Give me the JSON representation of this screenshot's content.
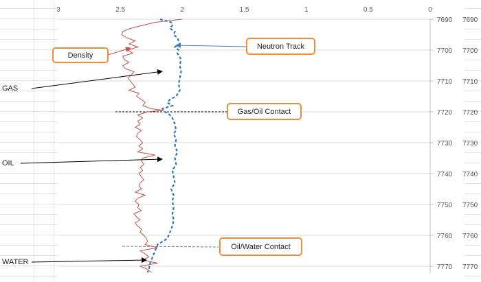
{
  "chart_data": {
    "type": "line",
    "x_axis": {
      "ticks": [
        "3",
        "2.5",
        "2",
        "1.5",
        "1",
        "0.5",
        "0"
      ],
      "range": [
        3,
        0
      ],
      "position": "top",
      "reversed": true
    },
    "y_axis": {
      "ticks": [
        "7690",
        "7700",
        "7710",
        "7720",
        "7730",
        "7740",
        "7750",
        "7760",
        "7770"
      ],
      "range": [
        7690,
        7772
      ],
      "reversed": true,
      "secondary_labels": true
    },
    "gridlines": "horizontal",
    "series": [
      {
        "name": "Density",
        "color": "#c0504d",
        "style": "solid",
        "points": [
          [
            2.0,
            7690
          ],
          [
            2.22,
            7691
          ],
          [
            2.32,
            7692
          ],
          [
            2.42,
            7693
          ],
          [
            2.48,
            7694
          ],
          [
            2.49,
            7695
          ],
          [
            2.45,
            7696
          ],
          [
            2.38,
            7697
          ],
          [
            2.43,
            7698
          ],
          [
            2.36,
            7699
          ],
          [
            2.44,
            7700
          ],
          [
            2.4,
            7701
          ],
          [
            2.48,
            7702
          ],
          [
            2.47,
            7703
          ],
          [
            2.43,
            7704
          ],
          [
            2.48,
            7705
          ],
          [
            2.46,
            7706
          ],
          [
            2.39,
            7707
          ],
          [
            2.41,
            7708
          ],
          [
            2.44,
            7709
          ],
          [
            2.42,
            7710
          ],
          [
            2.4,
            7711
          ],
          [
            2.38,
            7712
          ],
          [
            2.43,
            7713
          ],
          [
            2.35,
            7714
          ],
          [
            2.37,
            7715
          ],
          [
            2.33,
            7716
          ],
          [
            2.3,
            7717
          ],
          [
            2.32,
            7718
          ],
          [
            2.25,
            7719
          ],
          [
            2.15,
            7719.5
          ],
          [
            2.28,
            7720
          ],
          [
            2.36,
            7721
          ],
          [
            2.32,
            7722
          ],
          [
            2.36,
            7723
          ],
          [
            2.34,
            7724
          ],
          [
            2.38,
            7725
          ],
          [
            2.33,
            7726
          ],
          [
            2.36,
            7727
          ],
          [
            2.37,
            7728
          ],
          [
            2.34,
            7729
          ],
          [
            2.32,
            7730
          ],
          [
            2.35,
            7731
          ],
          [
            2.32,
            7732
          ],
          [
            2.36,
            7733
          ],
          [
            2.22,
            7734
          ],
          [
            2.32,
            7735
          ],
          [
            2.33,
            7736
          ],
          [
            2.31,
            7737
          ],
          [
            2.34,
            7738
          ],
          [
            2.32,
            7739
          ],
          [
            2.35,
            7740
          ],
          [
            2.33,
            7741
          ],
          [
            2.31,
            7742
          ],
          [
            2.34,
            7743
          ],
          [
            2.35,
            7744
          ],
          [
            2.33,
            7745
          ],
          [
            2.38,
            7746
          ],
          [
            2.3,
            7747
          ],
          [
            2.36,
            7748
          ],
          [
            2.38,
            7749
          ],
          [
            2.35,
            7750
          ],
          [
            2.36,
            7751
          ],
          [
            2.33,
            7752
          ],
          [
            2.39,
            7753
          ],
          [
            2.37,
            7754
          ],
          [
            2.34,
            7755
          ],
          [
            2.38,
            7756
          ],
          [
            2.36,
            7757
          ],
          [
            2.33,
            7758
          ],
          [
            2.34,
            7759
          ],
          [
            2.31,
            7760
          ],
          [
            2.29,
            7761
          ],
          [
            2.28,
            7762
          ],
          [
            2.3,
            7763
          ],
          [
            2.2,
            7764
          ],
          [
            2.34,
            7765
          ],
          [
            2.3,
            7766
          ],
          [
            2.27,
            7767
          ],
          [
            2.32,
            7768
          ],
          [
            2.2,
            7769
          ],
          [
            2.34,
            7770
          ],
          [
            2.28,
            7771
          ],
          [
            2.25,
            7772
          ]
        ]
      },
      {
        "name": "Neutron Track",
        "color": "#2e75b6",
        "style": "dashed",
        "points": [
          [
            2.18,
            7690
          ],
          [
            2.09,
            7691
          ],
          [
            2.08,
            7692
          ],
          [
            2.1,
            7693
          ],
          [
            2.06,
            7694
          ],
          [
            2.07,
            7695
          ],
          [
            2.04,
            7696
          ],
          [
            2.02,
            7698
          ],
          [
            2.06,
            7699
          ],
          [
            2.03,
            7700
          ],
          [
            2.04,
            7701
          ],
          [
            2.01,
            7703
          ],
          [
            2.02,
            7705
          ],
          [
            2.01,
            7707
          ],
          [
            2.02,
            7709
          ],
          [
            2.03,
            7711
          ],
          [
            2.02,
            7713
          ],
          [
            2.05,
            7715
          ],
          [
            2.1,
            7716
          ],
          [
            2.12,
            7717
          ],
          [
            2.08,
            7718
          ],
          [
            2.16,
            7719
          ],
          [
            2.14,
            7720
          ],
          [
            2.1,
            7721
          ],
          [
            2.08,
            7722
          ],
          [
            2.06,
            7724
          ],
          [
            2.05,
            7726
          ],
          [
            2.07,
            7727
          ],
          [
            2.05,
            7729
          ],
          [
            2.06,
            7731
          ],
          [
            2.04,
            7733
          ],
          [
            2.06,
            7735
          ],
          [
            2.05,
            7737
          ],
          [
            2.08,
            7739
          ],
          [
            2.07,
            7741
          ],
          [
            2.06,
            7743
          ],
          [
            2.09,
            7745
          ],
          [
            2.07,
            7747
          ],
          [
            2.08,
            7749
          ],
          [
            2.07,
            7751
          ],
          [
            2.08,
            7753
          ],
          [
            2.07,
            7755
          ],
          [
            2.08,
            7757
          ],
          [
            2.1,
            7759
          ],
          [
            2.12,
            7761
          ],
          [
            2.2,
            7763
          ],
          [
            2.22,
            7765
          ],
          [
            2.24,
            7767
          ],
          [
            2.26,
            7769
          ],
          [
            2.27,
            7771
          ],
          [
            2.28,
            7772
          ]
        ]
      }
    ]
  },
  "callouts": {
    "density": "Density",
    "neutron": "Neutron Track",
    "gas_oil": "Gas/Oil Contact",
    "oil_water": "Oil/Water Contact"
  },
  "zones": {
    "gas": "GAS",
    "oil": "OIL",
    "water": "WATER"
  },
  "colors": {
    "density": "#c0504d",
    "neutron": "#2e75b6",
    "callout_border": "#ed8b3a",
    "grid": "#d9d9d9"
  }
}
